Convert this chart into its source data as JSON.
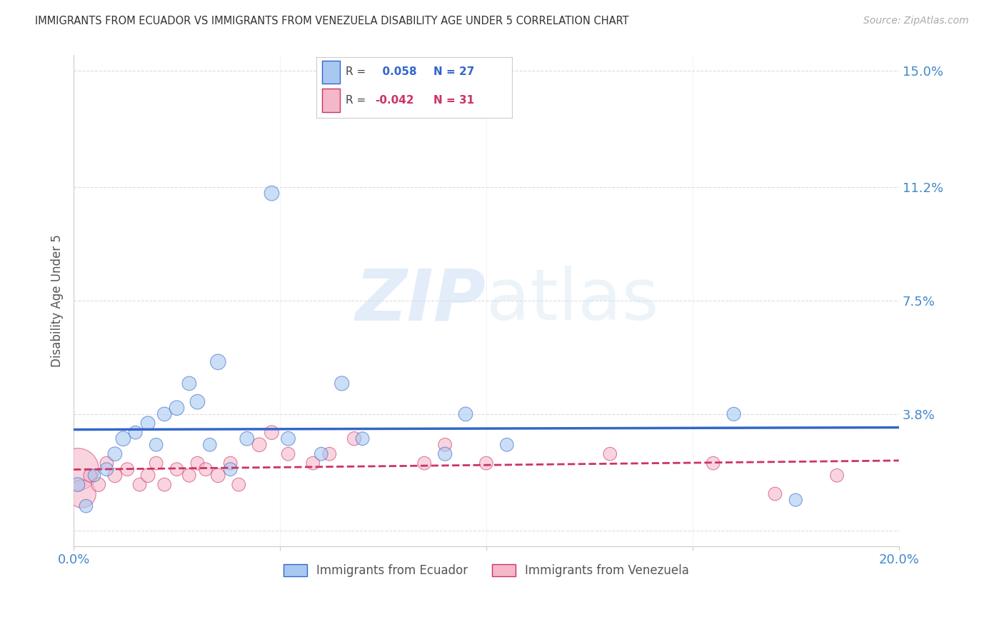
{
  "title": "IMMIGRANTS FROM ECUADOR VS IMMIGRANTS FROM VENEZUELA DISABILITY AGE UNDER 5 CORRELATION CHART",
  "source": "Source: ZipAtlas.com",
  "ylabel": "Disability Age Under 5",
  "legend_label_ecuador": "Immigrants from Ecuador",
  "legend_label_venezuela": "Immigrants from Venezuela",
  "R_ecuador": 0.058,
  "N_ecuador": 27,
  "R_venezuela": -0.042,
  "N_venezuela": 31,
  "xlim": [
    0.0,
    0.2
  ],
  "ylim": [
    -0.005,
    0.155
  ],
  "yticks": [
    0.0,
    0.038,
    0.075,
    0.112,
    0.15
  ],
  "ytick_labels": [
    "",
    "3.8%",
    "7.5%",
    "11.2%",
    "15.0%"
  ],
  "xticks": [
    0.0,
    0.05,
    0.1,
    0.15,
    0.2
  ],
  "xtick_labels": [
    "0.0%",
    "",
    "",
    "",
    "20.0%"
  ],
  "color_ecuador": "#a8c8f0",
  "color_venezuela": "#f5b8c8",
  "line_color_ecuador": "#3366cc",
  "line_color_venezuela": "#cc3366",
  "background_color": "#ffffff",
  "watermark_zip": "ZIP",
  "watermark_atlas": "atlas",
  "ecuador_x": [
    0.001,
    0.003,
    0.005,
    0.008,
    0.01,
    0.012,
    0.015,
    0.018,
    0.02,
    0.022,
    0.025,
    0.028,
    0.03,
    0.033,
    0.035,
    0.038,
    0.042,
    0.048,
    0.052,
    0.06,
    0.065,
    0.07,
    0.09,
    0.095,
    0.105,
    0.16,
    0.175
  ],
  "ecuador_y": [
    0.015,
    0.008,
    0.018,
    0.02,
    0.025,
    0.03,
    0.032,
    0.035,
    0.028,
    0.038,
    0.04,
    0.048,
    0.042,
    0.028,
    0.055,
    0.02,
    0.03,
    0.11,
    0.03,
    0.025,
    0.048,
    0.03,
    0.025,
    0.038,
    0.028,
    0.038,
    0.01
  ],
  "ecuador_size": [
    200,
    180,
    160,
    180,
    200,
    220,
    180,
    200,
    180,
    200,
    220,
    200,
    220,
    180,
    240,
    180,
    200,
    220,
    200,
    180,
    210,
    180,
    190,
    200,
    180,
    190,
    170
  ],
  "venezuela_x": [
    0.001,
    0.002,
    0.004,
    0.006,
    0.008,
    0.01,
    0.013,
    0.016,
    0.018,
    0.02,
    0.022,
    0.025,
    0.028,
    0.03,
    0.032,
    0.035,
    0.038,
    0.04,
    0.045,
    0.048,
    0.052,
    0.058,
    0.062,
    0.068,
    0.085,
    0.09,
    0.1,
    0.13,
    0.155,
    0.17,
    0.185
  ],
  "venezuela_y": [
    0.02,
    0.012,
    0.018,
    0.015,
    0.022,
    0.018,
    0.02,
    0.015,
    0.018,
    0.022,
    0.015,
    0.02,
    0.018,
    0.022,
    0.02,
    0.018,
    0.022,
    0.015,
    0.028,
    0.032,
    0.025,
    0.022,
    0.025,
    0.03,
    0.022,
    0.028,
    0.022,
    0.025,
    0.022,
    0.012,
    0.018
  ],
  "venezuela_size": [
    1800,
    800,
    180,
    200,
    180,
    200,
    180,
    180,
    200,
    180,
    180,
    180,
    180,
    180,
    180,
    200,
    180,
    180,
    200,
    200,
    180,
    180,
    180,
    190,
    180,
    180,
    180,
    180,
    180,
    180,
    180
  ]
}
